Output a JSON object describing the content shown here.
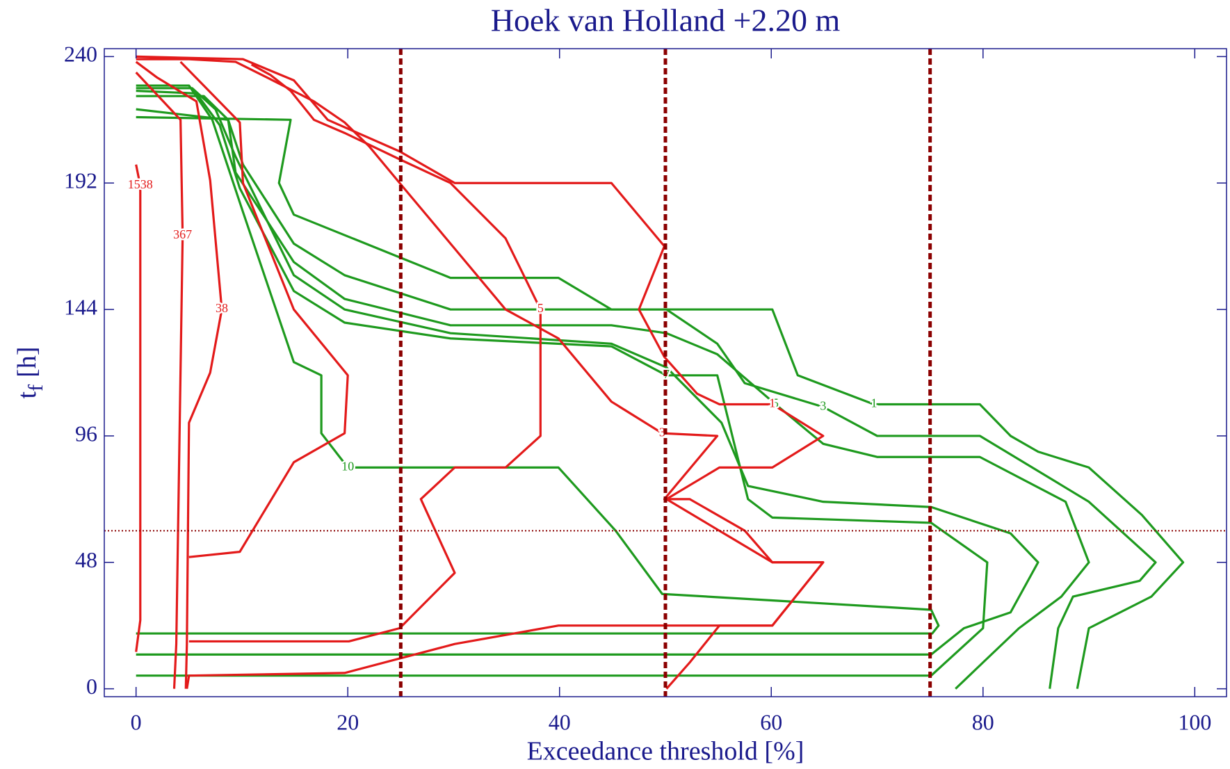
{
  "chart_data": {
    "type": "contour",
    "title": "Hoek van Holland +2.20 m",
    "x_label": "Exceedance threshold [%]",
    "y_label": {
      "text": "t",
      "subscript": "f",
      "suffix": "[h]"
    },
    "xlim": [
      -3,
      103
    ],
    "ylim": [
      -3,
      243
    ],
    "xticks": [
      0,
      20,
      40,
      60,
      80,
      100
    ],
    "yticks": [
      0,
      48,
      96,
      144,
      192,
      240
    ],
    "axis_color": "#1a1a8c",
    "reference_color": "#8b0000",
    "vlines": [
      25,
      50,
      75
    ],
    "hlines": [
      60
    ],
    "contours": [
      {
        "color": "#1e9a1e",
        "label": "10",
        "x": [
          0,
          5.0,
          7.2,
          10.1,
          14.9,
          17.5,
          17.5,
          20.0,
          39.9,
          45.3,
          49.7,
          75.1,
          75.8,
          75.2,
          0
        ],
        "y": [
          229,
          229,
          216,
          181,
          124,
          119,
          97,
          84,
          84,
          60,
          36,
          30,
          24,
          21,
          21
        ]
      },
      {
        "color": "#1e9a1e",
        "x": [
          0,
          5.3,
          7.5,
          9.4,
          14.9,
          19.7,
          29.7,
          44.9,
          50.1,
          55.3,
          57.8,
          64.9,
          75.1,
          82.6,
          85.2,
          82.6,
          78.2,
          75.1,
          0
        ],
        "y": [
          228,
          228,
          220,
          202,
          157,
          144,
          135,
          131,
          122,
          101,
          77,
          71,
          69,
          59,
          48,
          29,
          23,
          13,
          13
        ]
      },
      {
        "color": "#1e9a1e",
        "label": "7",
        "x": [
          0,
          5.7,
          7.9,
          9.8,
          14.9,
          19.7,
          29.7,
          44.9,
          50.1,
          54.9,
          57.8,
          60.1,
          75.1,
          80.4,
          80.0,
          75.1,
          0
        ],
        "y": [
          227,
          226,
          214,
          190,
          151,
          139,
          133,
          130,
          119,
          119,
          72,
          65,
          63,
          48,
          23,
          5,
          5
        ]
      },
      {
        "color": "#1e9a1e",
        "label": "5",
        "x": [
          0,
          6.4,
          8.7,
          9.4,
          14.9,
          19.7,
          29.7,
          44.9,
          50.1,
          54.9,
          60.4,
          64.9,
          70.0,
          79.7,
          87.8,
          90.0,
          87.4,
          83.4,
          80.0,
          77.4
        ],
        "y": [
          225,
          225,
          216,
          196,
          162,
          148,
          138,
          138,
          135,
          127,
          108,
          93,
          88,
          88,
          71,
          48,
          35,
          23,
          10,
          0
        ]
      },
      {
        "color": "#1e9a1e",
        "label": "3",
        "x": [
          0,
          8.7,
          10.1,
          14.9,
          19.7,
          29.7,
          50.1,
          54.9,
          57.5,
          64.9,
          70.0,
          79.7,
          82.6,
          90.0,
          96.3,
          94.8,
          88.5,
          87.1,
          86.3
        ],
        "y": [
          220,
          216,
          199,
          169,
          157,
          144,
          144,
          131,
          116,
          107,
          96,
          96,
          89,
          71,
          48,
          41,
          35,
          23,
          0
        ]
      },
      {
        "color": "#1e9a1e",
        "label": "1",
        "x": [
          0,
          14.6,
          13.5,
          14.9,
          29.7,
          39.9,
          44.9,
          60.1,
          62.5,
          69.7,
          79.7,
          82.6,
          85.2,
          90.0,
          95.0,
          98.9,
          95.9,
          90.0,
          88.9
        ],
        "y": [
          217,
          216,
          192,
          180,
          156,
          156,
          144,
          144,
          119,
          108,
          108,
          96,
          90,
          84,
          66,
          48,
          35,
          23,
          0
        ]
      },
      {
        "color": "#e31a1a",
        "label": "1538",
        "x": [
          0,
          0.4,
          0.4,
          0
        ],
        "y": [
          14,
          26,
          191,
          199
        ]
      },
      {
        "color": "#e31a1a",
        "label": "367",
        "x": [
          3.6,
          3.8,
          4.4,
          4.2,
          0
        ],
        "y": [
          0,
          17,
          172,
          216,
          234
        ]
      },
      {
        "color": "#e31a1a",
        "label": "38",
        "x": [
          4.7,
          4.8,
          5.0,
          7.0,
          8.1,
          7.0,
          5.7,
          2.0,
          0
        ],
        "y": [
          0,
          17,
          101,
          120,
          144,
          193,
          223,
          232,
          238
        ]
      },
      {
        "color": "#e31a1a",
        "x": [
          5.0,
          9.8,
          14.9,
          19.7,
          20.0,
          14.9,
          10.1,
          9.8,
          4.2
        ],
        "y": [
          50,
          52,
          86,
          97,
          119,
          144,
          192,
          215,
          238
        ]
      },
      {
        "color": "#e31a1a",
        "label": "3",
        "x": [
          4.8,
          5.0,
          19.7,
          30.1,
          39.9,
          60.1,
          64.9,
          60.1,
          57.5,
          52.3,
          49.9,
          54.9,
          49.7,
          44.9,
          39.9,
          34.9,
          29.7,
          24.9,
          22.0,
          19.7,
          16.8,
          12.4,
          9.4,
          5.0,
          0
        ],
        "y": [
          0,
          5,
          6,
          17,
          24,
          24,
          48,
          48,
          60,
          72,
          72,
          96,
          97,
          109,
          133,
          144,
          169,
          192,
          206,
          215,
          223,
          232,
          238,
          239,
          239
        ]
      },
      {
        "color": "#e31a1a",
        "label": "5",
        "x": [
          5.0,
          20.1,
          24.9,
          30.1,
          26.9,
          30.1,
          34.9,
          38.2,
          38.2,
          34.9,
          29.7,
          24.9,
          19.7,
          16.8,
          14.6,
          12.7,
          10.9
        ],
        "y": [
          18,
          18,
          23,
          44,
          72,
          84,
          84,
          96,
          144,
          171,
          192,
          201,
          211,
          216,
          227,
          233,
          237
        ]
      },
      {
        "color": "#e31a1a",
        "label": "1",
        "x": [
          0,
          10.1,
          14.9,
          18.1,
          24.9,
          30.1,
          44.9,
          49.9,
          47.5,
          49.9,
          53.0,
          55.1,
          60.1,
          64.9,
          60.1,
          55.1,
          50.1,
          55.1,
          60.1,
          64.9,
          60.1,
          55.1,
          52.3,
          50.1
        ],
        "y": [
          240,
          239,
          231,
          216,
          204,
          192,
          192,
          168,
          144,
          126,
          112,
          108,
          108,
          96,
          84,
          84,
          72,
          60,
          48,
          48,
          24,
          24,
          10,
          0
        ]
      }
    ]
  }
}
